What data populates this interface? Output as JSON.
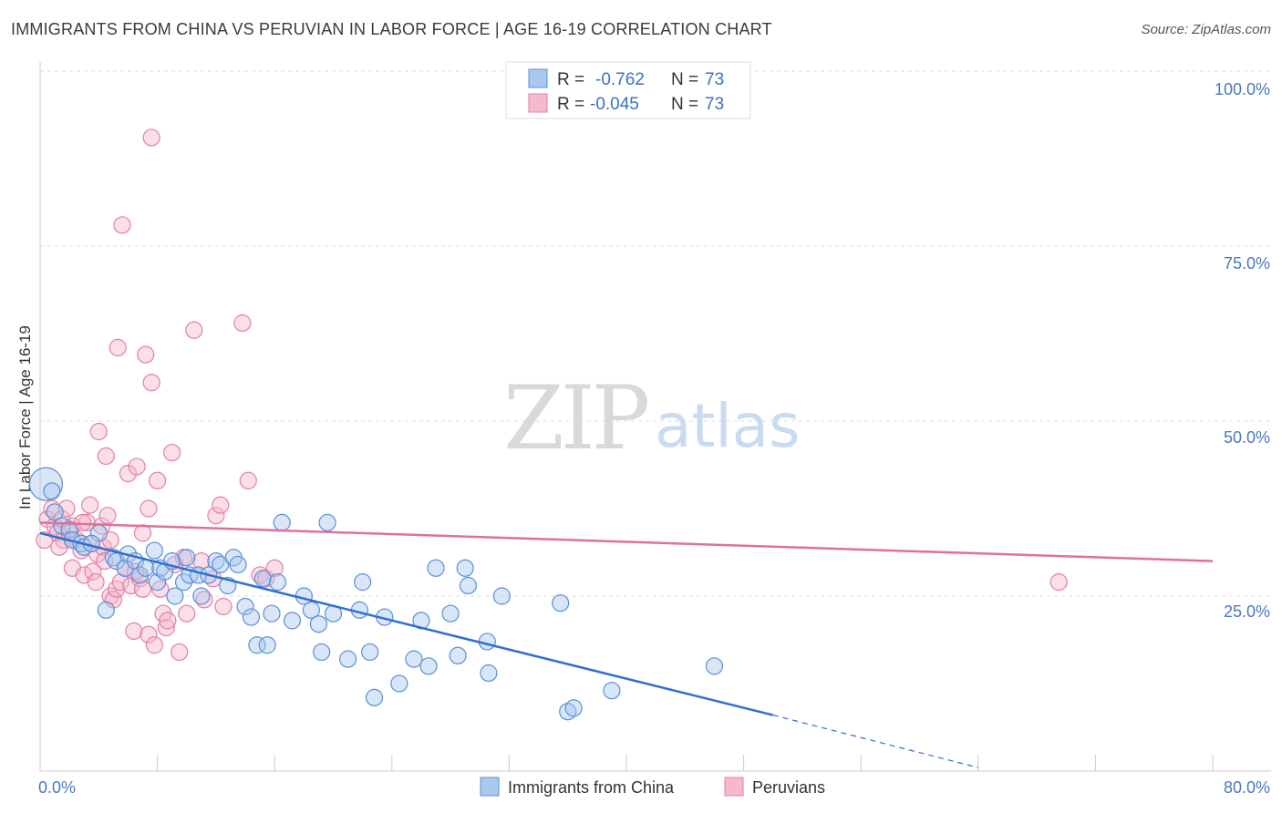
{
  "header": {
    "title": "IMMIGRANTS FROM CHINA VS PERUVIAN IN LABOR FORCE | AGE 16-19 CORRELATION CHART",
    "source": "Source: ZipAtlas.com"
  },
  "watermark": {
    "zip": "ZIP",
    "atlas": "atlas"
  },
  "colors": {
    "china_fill": "#a9c8ef",
    "china_stroke": "#5b8fd6",
    "china_line": "#2f6fd1",
    "peru_fill": "#f5b8cc",
    "peru_stroke": "#e47fa3",
    "peru_line": "#e0709a",
    "tick_label": "#4a78c2",
    "grid": "#dddddd"
  },
  "legend": {
    "rows": [
      {
        "r_label": "R =",
        "r_value": "-0.762",
        "n_label": "N =",
        "n_value": "73"
      },
      {
        "r_label": "R =",
        "r_value": "-0.045",
        "n_label": "N =",
        "n_value": "73"
      }
    ]
  },
  "bottom_legend": {
    "china": "Immigrants from China",
    "peru": "Peruvians"
  },
  "chart_data": {
    "type": "scatter",
    "title": "IMMIGRANTS FROM CHINA VS PERUVIAN IN LABOR FORCE | AGE 16-19 CORRELATION CHART",
    "xlabel": "",
    "ylabel": "In Labor Force | Age 16-19",
    "xlim": [
      0,
      80
    ],
    "ylim": [
      0,
      100
    ],
    "x_tick_labels": [
      "0.0%",
      "80.0%"
    ],
    "y_tick_labels": [
      "25.0%",
      "50.0%",
      "75.0%",
      "100.0%"
    ],
    "y_ticks": [
      25,
      50,
      75,
      100
    ],
    "grid": true,
    "legend_placement": "top-center",
    "series": [
      {
        "name": "Immigrants from China",
        "r": -0.762,
        "n": 73,
        "trend": {
          "x": [
            0,
            50
          ],
          "y": [
            34,
            8
          ],
          "dashed_to": [
            64,
            0.5
          ]
        },
        "points": [
          {
            "x": 0.4,
            "y": 41,
            "big": true
          },
          {
            "x": 0.8,
            "y": 40
          },
          {
            "x": 1.0,
            "y": 37
          },
          {
            "x": 1.5,
            "y": 35
          },
          {
            "x": 2.0,
            "y": 34.5
          },
          {
            "x": 2.2,
            "y": 33
          },
          {
            "x": 2.8,
            "y": 32.5
          },
          {
            "x": 3.0,
            "y": 32
          },
          {
            "x": 4.0,
            "y": 34
          },
          {
            "x": 4.5,
            "y": 23
          },
          {
            "x": 5.0,
            "y": 30.5
          },
          {
            "x": 5.2,
            "y": 30
          },
          {
            "x": 5.8,
            "y": 29
          },
          {
            "x": 6.0,
            "y": 31
          },
          {
            "x": 6.5,
            "y": 30
          },
          {
            "x": 6.8,
            "y": 28
          },
          {
            "x": 7.2,
            "y": 29
          },
          {
            "x": 7.8,
            "y": 31.5
          },
          {
            "x": 8.0,
            "y": 27
          },
          {
            "x": 8.2,
            "y": 29
          },
          {
            "x": 8.5,
            "y": 28.5
          },
          {
            "x": 9.0,
            "y": 30
          },
          {
            "x": 9.2,
            "y": 25
          },
          {
            "x": 9.8,
            "y": 27
          },
          {
            "x": 10.0,
            "y": 30.5
          },
          {
            "x": 10.2,
            "y": 28
          },
          {
            "x": 10.8,
            "y": 28
          },
          {
            "x": 11.0,
            "y": 25
          },
          {
            "x": 11.5,
            "y": 28
          },
          {
            "x": 12.0,
            "y": 30
          },
          {
            "x": 12.3,
            "y": 29.5
          },
          {
            "x": 12.8,
            "y": 26.5
          },
          {
            "x": 13.2,
            "y": 30.5
          },
          {
            "x": 13.5,
            "y": 29.5
          },
          {
            "x": 14.0,
            "y": 23.5
          },
          {
            "x": 14.4,
            "y": 22
          },
          {
            "x": 14.8,
            "y": 18
          },
          {
            "x": 15.2,
            "y": 27.5
          },
          {
            "x": 15.5,
            "y": 18
          },
          {
            "x": 15.8,
            "y": 22.5
          },
          {
            "x": 16.2,
            "y": 27
          },
          {
            "x": 16.5,
            "y": 35.5
          },
          {
            "x": 17.2,
            "y": 21.5
          },
          {
            "x": 18.0,
            "y": 25
          },
          {
            "x": 18.5,
            "y": 23
          },
          {
            "x": 19.0,
            "y": 21
          },
          {
            "x": 19.2,
            "y": 17
          },
          {
            "x": 19.6,
            "y": 35.5
          },
          {
            "x": 20.0,
            "y": 22.5
          },
          {
            "x": 21.0,
            "y": 16
          },
          {
            "x": 21.8,
            "y": 23
          },
          {
            "x": 22.0,
            "y": 27
          },
          {
            "x": 22.5,
            "y": 17
          },
          {
            "x": 22.8,
            "y": 10.5
          },
          {
            "x": 23.5,
            "y": 22
          },
          {
            "x": 24.5,
            "y": 12.5
          },
          {
            "x": 25.5,
            "y": 16
          },
          {
            "x": 26.0,
            "y": 21.5
          },
          {
            "x": 26.5,
            "y": 15
          },
          {
            "x": 27.0,
            "y": 29
          },
          {
            "x": 28.0,
            "y": 22.5
          },
          {
            "x": 28.5,
            "y": 16.5
          },
          {
            "x": 29.0,
            "y": 29
          },
          {
            "x": 29.2,
            "y": 26.5
          },
          {
            "x": 30.5,
            "y": 18.5
          },
          {
            "x": 30.6,
            "y": 14
          },
          {
            "x": 31.5,
            "y": 25
          },
          {
            "x": 35.5,
            "y": 24
          },
          {
            "x": 36.0,
            "y": 8.5
          },
          {
            "x": 36.4,
            "y": 9
          },
          {
            "x": 39.0,
            "y": 11.5
          },
          {
            "x": 46.0,
            "y": 15
          },
          {
            "x": 3.5,
            "y": 32.5
          }
        ]
      },
      {
        "name": "Peruvians",
        "r": -0.045,
        "n": 73,
        "trend": {
          "x": [
            0,
            80
          ],
          "y": [
            35.5,
            30
          ]
        },
        "points": [
          {
            "x": 0.3,
            "y": 33
          },
          {
            "x": 0.5,
            "y": 36
          },
          {
            "x": 0.8,
            "y": 37.5
          },
          {
            "x": 1.0,
            "y": 35
          },
          {
            "x": 1.2,
            "y": 34
          },
          {
            "x": 1.5,
            "y": 36
          },
          {
            "x": 1.6,
            "y": 33
          },
          {
            "x": 1.8,
            "y": 37.5
          },
          {
            "x": 2.0,
            "y": 34
          },
          {
            "x": 2.2,
            "y": 35
          },
          {
            "x": 2.2,
            "y": 29
          },
          {
            "x": 2.5,
            "y": 33
          },
          {
            "x": 2.8,
            "y": 31.5
          },
          {
            "x": 3.0,
            "y": 28
          },
          {
            "x": 3.2,
            "y": 35.5
          },
          {
            "x": 3.4,
            "y": 38
          },
          {
            "x": 3.5,
            "y": 32.5
          },
          {
            "x": 3.6,
            "y": 28.5
          },
          {
            "x": 3.8,
            "y": 27
          },
          {
            "x": 3.9,
            "y": 31
          },
          {
            "x": 4.0,
            "y": 48.5
          },
          {
            "x": 4.2,
            "y": 35
          },
          {
            "x": 4.3,
            "y": 32
          },
          {
            "x": 4.5,
            "y": 45
          },
          {
            "x": 4.6,
            "y": 36.5
          },
          {
            "x": 4.8,
            "y": 33
          },
          {
            "x": 4.8,
            "y": 25
          },
          {
            "x": 5.0,
            "y": 24.5
          },
          {
            "x": 5.2,
            "y": 26
          },
          {
            "x": 5.3,
            "y": 60.5
          },
          {
            "x": 5.5,
            "y": 27
          },
          {
            "x": 5.6,
            "y": 78
          },
          {
            "x": 5.8,
            "y": 29
          },
          {
            "x": 6.0,
            "y": 42.5
          },
          {
            "x": 6.2,
            "y": 26.5
          },
          {
            "x": 6.4,
            "y": 20
          },
          {
            "x": 6.6,
            "y": 43.5
          },
          {
            "x": 6.8,
            "y": 27.5
          },
          {
            "x": 7.0,
            "y": 26
          },
          {
            "x": 7.0,
            "y": 34
          },
          {
            "x": 7.2,
            "y": 59.5
          },
          {
            "x": 7.4,
            "y": 37.5
          },
          {
            "x": 7.4,
            "y": 19.5
          },
          {
            "x": 7.6,
            "y": 55.5
          },
          {
            "x": 7.8,
            "y": 18
          },
          {
            "x": 7.6,
            "y": 90.5
          },
          {
            "x": 8.0,
            "y": 41.5
          },
          {
            "x": 8.2,
            "y": 26
          },
          {
            "x": 8.4,
            "y": 22.5
          },
          {
            "x": 8.6,
            "y": 20.5
          },
          {
            "x": 8.7,
            "y": 21.5
          },
          {
            "x": 9.0,
            "y": 45.5
          },
          {
            "x": 9.2,
            "y": 29.5
          },
          {
            "x": 9.5,
            "y": 17
          },
          {
            "x": 9.8,
            "y": 30.5
          },
          {
            "x": 10.0,
            "y": 22.5
          },
          {
            "x": 10.5,
            "y": 63
          },
          {
            "x": 11.0,
            "y": 30
          },
          {
            "x": 11.2,
            "y": 24.5
          },
          {
            "x": 11.8,
            "y": 27.5
          },
          {
            "x": 12.0,
            "y": 36.5
          },
          {
            "x": 12.3,
            "y": 38
          },
          {
            "x": 12.5,
            "y": 23.5
          },
          {
            "x": 13.8,
            "y": 64
          },
          {
            "x": 14.2,
            "y": 41.5
          },
          {
            "x": 15.0,
            "y": 28
          },
          {
            "x": 15.4,
            "y": 27.5
          },
          {
            "x": 16.0,
            "y": 29
          },
          {
            "x": 6.5,
            "y": 28.5
          },
          {
            "x": 69.5,
            "y": 27
          },
          {
            "x": 4.4,
            "y": 30
          },
          {
            "x": 2.9,
            "y": 35.5
          },
          {
            "x": 1.3,
            "y": 32
          }
        ]
      }
    ]
  }
}
